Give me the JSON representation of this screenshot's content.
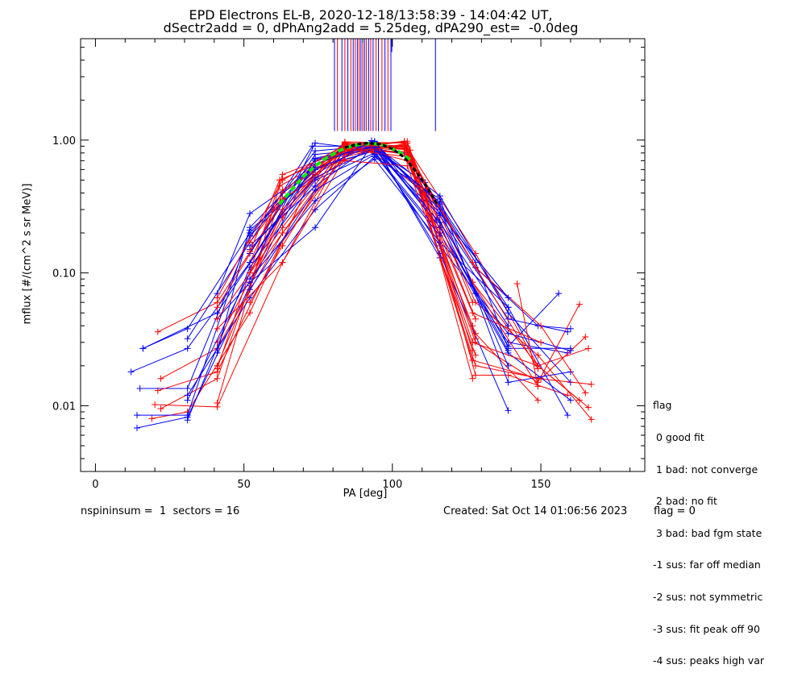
{
  "title": {
    "line1": "EPD Electrons EL-B, 2020-12-18/13:58:39 - 14:04:42 UT,",
    "line2": "dSectr2add = 0, dPhAng2add = 5.25deg, dPA290_est=  -0.0deg"
  },
  "footer": {
    "left": "nspininsum =  1  sectors = 16",
    "created": "Created: Sat Oct 14 01:06:56 2023",
    "flag": "flag = 0"
  },
  "legend": {
    "title": "flag",
    "items": [
      " 0 good fit",
      " 1 bad: not converge",
      " 2 bad: no fit",
      " 3 bad: bad fgm state",
      "-1 sus: far off median",
      "-2 sus: not symmetric",
      "-3 sus: fit peak off 90",
      "-4 sus: peaks high var"
    ]
  },
  "chart_data": {
    "type": "line",
    "xlabel": "PA [deg]",
    "ylabel": "mflux [#/(cm^2 s sr MeV)]",
    "xlim": [
      -5,
      185
    ],
    "ylim": [
      0.0032,
      5.8
    ],
    "yscale": "log",
    "xticks": [
      0,
      50,
      100,
      150
    ],
    "xtick_labels": [
      "0",
      "50",
      "100",
      "150"
    ],
    "yticks": [
      0.01,
      0.1,
      1.0
    ],
    "ytick_labels": [
      "0.01",
      "0.10",
      "1.00"
    ],
    "colors": {
      "red": "#ff0000",
      "blue": "#0000ff",
      "green": "#00ee00",
      "black": "#000000"
    },
    "series": [
      {
        "color": "blue",
        "x": [
          12,
          31,
          52,
          74,
          93,
          111,
          128,
          139,
          160
        ],
        "y": [
          0.018,
          0.027,
          0.12,
          0.72,
          0.88,
          0.48,
          0.12,
          0.027,
          0.027
        ]
      },
      {
        "color": "red",
        "x": [
          19,
          31,
          52,
          74,
          93,
          111,
          128,
          139,
          159
        ],
        "y": [
          0.008,
          0.009,
          0.05,
          0.6,
          0.82,
          0.4,
          0.017,
          0.017,
          0.012
        ]
      },
      {
        "color": "blue",
        "x": [
          14,
          31,
          52,
          74,
          93,
          111,
          128,
          139,
          159
        ],
        "y": [
          0.0068,
          0.0082,
          0.08,
          0.73,
          0.9,
          0.42,
          0.07,
          0.03,
          0.025
        ]
      },
      {
        "color": "red",
        "x": [
          21,
          41,
          63,
          84,
          104,
          128,
          149,
          166
        ],
        "y": [
          0.036,
          0.06,
          0.34,
          0.97,
          0.95,
          0.14,
          0.02,
          0.027
        ]
      },
      {
        "color": "blue",
        "x": [
          16,
          41,
          63,
          84,
          104,
          128,
          149,
          160
        ],
        "y": [
          0.027,
          0.05,
          0.28,
          0.9,
          0.8,
          0.11,
          0.04,
          0.038
        ]
      },
      {
        "color": "red",
        "x": [
          22,
          41,
          63,
          84,
          104,
          128,
          149,
          167
        ],
        "y": [
          0.016,
          0.027,
          0.2,
          0.85,
          0.9,
          0.06,
          0.024,
          0.0079
        ]
      },
      {
        "color": "blue",
        "x": [
          15,
          31,
          52,
          74,
          94,
          116,
          139,
          159
        ],
        "y": [
          0.0135,
          0.0135,
          0.19,
          0.83,
          0.91,
          0.33,
          0.055,
          0.0085
        ]
      },
      {
        "color": "red",
        "x": [
          20,
          41,
          63,
          84,
          104,
          127,
          149,
          163
        ],
        "y": [
          0.0102,
          0.0098,
          0.12,
          0.88,
          0.98,
          0.085,
          0.02,
          0.011
        ]
      },
      {
        "color": "blue",
        "x": [
          16,
          31,
          52,
          74,
          94,
          116,
          139,
          160
        ],
        "y": [
          0.027,
          0.038,
          0.2,
          0.66,
          0.92,
          0.38,
          0.05,
          0.015
        ]
      },
      {
        "color": "red",
        "x": [
          21,
          41,
          62,
          84,
          104,
          128,
          150,
          165
        ],
        "y": [
          0.013,
          0.018,
          0.16,
          0.78,
          0.92,
          0.02,
          0.016,
          0.033
        ]
      },
      {
        "color": "blue",
        "x": [
          14,
          31,
          52,
          74,
          93,
          116,
          139,
          156
        ],
        "y": [
          0.0085,
          0.0085,
          0.21,
          0.55,
          0.99,
          0.22,
          0.028,
          0.07
        ]
      },
      {
        "color": "red",
        "x": [
          22,
          41,
          63,
          84,
          104,
          128,
          149,
          163
        ],
        "y": [
          0.0095,
          0.016,
          0.4,
          0.84,
          0.88,
          0.03,
          0.015,
          0.058
        ]
      },
      {
        "color": "blue",
        "x": [
          31,
          52,
          73,
          94,
          116,
          139
        ],
        "y": [
          0.032,
          0.17,
          0.9,
          0.9,
          0.14,
          0.0092
        ]
      },
      {
        "color": "red",
        "x": [
          41,
          62,
          84,
          104,
          127,
          149,
          167
        ],
        "y": [
          0.0105,
          0.45,
          0.84,
          0.92,
          0.022,
          0.016,
          0.0145
        ]
      },
      {
        "color": "blue",
        "x": [
          31,
          52,
          74,
          94,
          116,
          139,
          160
        ],
        "y": [
          0.0078,
          0.11,
          0.5,
          0.8,
          0.2,
          0.025,
          0.011
        ]
      },
      {
        "color": "red",
        "x": [
          41,
          63,
          84,
          104,
          128,
          149
        ],
        "y": [
          0.019,
          0.55,
          0.84,
          0.82,
          0.035,
          0.011
        ]
      },
      {
        "color": "blue",
        "x": [
          31,
          52,
          74,
          94,
          116,
          139,
          160
        ],
        "y": [
          0.012,
          0.065,
          0.3,
          0.75,
          0.36,
          0.015,
          0.018
        ]
      },
      {
        "color": "red",
        "x": [
          41,
          63,
          84,
          104,
          128,
          150,
          165
        ],
        "y": [
          0.03,
          0.26,
          0.95,
          0.9,
          0.11,
          0.04,
          0.0125
        ]
      },
      {
        "color": "blue",
        "x": [
          31,
          52,
          74,
          94,
          116,
          139,
          159
        ],
        "y": [
          0.011,
          0.1,
          0.95,
          0.84,
          0.27,
          0.045,
          0.036
        ]
      },
      {
        "color": "red",
        "x": [
          41,
          63,
          84,
          104,
          127,
          149,
          166
        ],
        "y": [
          0.02,
          0.3,
          0.94,
          0.96,
          0.03,
          0.02,
          0.0097
        ]
      },
      {
        "color": "blue",
        "x": [
          41,
          52,
          74,
          94,
          116,
          139,
          160
        ],
        "y": [
          0.07,
          0.28,
          0.62,
          0.83,
          0.16,
          0.035,
          0.026
        ]
      },
      {
        "color": "red",
        "x": [
          41,
          63,
          85,
          105,
          127,
          149,
          142
        ],
        "y": [
          0.038,
          0.12,
          0.8,
          0.87,
          0.085,
          0.014,
          0.083
        ]
      },
      {
        "color": "blue",
        "x": [
          41,
          52,
          74,
          94,
          116,
          139
        ],
        "y": [
          0.045,
          0.085,
          0.22,
          0.98,
          0.28,
          0.065
        ]
      },
      {
        "color": "red",
        "x": [
          41,
          63,
          84,
          105,
          127,
          150
        ],
        "y": [
          0.055,
          0.35,
          0.85,
          0.75,
          0.05,
          0.03
        ]
      },
      {
        "color": "blue",
        "x": [
          41,
          52,
          74,
          94,
          116,
          139
        ],
        "y": [
          0.025,
          0.22,
          0.7,
          0.9,
          0.22,
          0.026
        ]
      },
      {
        "color": "red",
        "x": [
          41,
          63,
          84,
          105,
          127,
          149
        ],
        "y": [
          0.045,
          0.22,
          0.9,
          0.78,
          0.12,
          0.019
        ]
      },
      {
        "color": "blue",
        "x": [
          52,
          74,
          94,
          116,
          139
        ],
        "y": [
          0.16,
          0.45,
          0.95,
          0.3,
          0.02
        ]
      },
      {
        "color": "red",
        "x": [
          52,
          63,
          84,
          105,
          127
        ],
        "y": [
          0.09,
          0.2,
          0.75,
          0.95,
          0.06
        ]
      },
      {
        "color": "blue",
        "x": [
          52,
          74,
          94,
          116,
          139
        ],
        "y": [
          0.14,
          0.78,
          0.86,
          0.24,
          0.04
        ]
      },
      {
        "color": "red",
        "x": [
          41,
          63,
          84,
          105,
          127
        ],
        "y": [
          0.065,
          0.5,
          0.92,
          0.7,
          0.04
        ]
      },
      {
        "color": "blue",
        "x": [
          52,
          74,
          94,
          116,
          139
        ],
        "y": [
          0.09,
          0.35,
          0.72,
          0.17,
          0.055
        ]
      },
      {
        "color": "red",
        "x": [
          52,
          63,
          85,
          105,
          127
        ],
        "y": [
          0.12,
          0.42,
          0.86,
          0.98,
          0.026
        ]
      },
      {
        "color": "blue",
        "x": [
          52,
          74,
          94,
          116
        ],
        "y": [
          0.19,
          0.6,
          0.93,
          0.13
        ]
      },
      {
        "color": "red",
        "x": [
          52,
          63,
          84,
          106,
          127
        ],
        "y": [
          0.06,
          0.16,
          0.93,
          0.84,
          0.016
        ]
      },
      {
        "color": "blue",
        "x": [
          52,
          74,
          94,
          116
        ],
        "y": [
          0.075,
          0.42,
          0.78,
          0.19
        ]
      },
      {
        "color": "red",
        "x": [
          52,
          63,
          84,
          105,
          128
        ],
        "y": [
          0.17,
          0.36,
          0.7,
          0.64,
          0.024
        ]
      },
      {
        "color": "blue",
        "x": [
          52,
          74,
          94,
          116
        ],
        "y": [
          0.15,
          0.52,
          0.88,
          0.34
        ]
      },
      {
        "color": "red",
        "x": [
          52,
          63,
          84,
          105,
          128
        ],
        "y": [
          0.1,
          0.28,
          0.96,
          0.85,
          0.045
        ]
      },
      {
        "color": "blue",
        "x": [
          52,
          74,
          94,
          115
        ],
        "y": [
          0.12,
          0.66,
          0.97,
          0.25
        ]
      },
      {
        "color": "red",
        "x": [
          52,
          62,
          84,
          105,
          128
        ],
        "y": [
          0.145,
          0.5,
          0.82,
          0.9,
          0.032
        ]
      }
    ],
    "fit_green": {
      "x": [
        62,
        66,
        70,
        74,
        78,
        82,
        86,
        90,
        94,
        98,
        102,
        106
      ],
      "y": [
        0.33,
        0.42,
        0.53,
        0.64,
        0.74,
        0.83,
        0.9,
        0.94,
        0.94,
        0.9,
        0.82,
        0.71
      ]
    },
    "fit_black": {
      "x": [
        84,
        88,
        92,
        96,
        100,
        104,
        108,
        112,
        115
      ],
      "y": [
        0.88,
        0.93,
        0.95,
        0.93,
        0.86,
        0.74,
        0.58,
        0.43,
        0.33
      ]
    },
    "vlines": [
      {
        "x": 80.5,
        "color": "blue"
      },
      {
        "x": 81.5,
        "color": "red"
      },
      {
        "x": 83.0,
        "color": "blue"
      },
      {
        "x": 84.0,
        "color": "red"
      },
      {
        "x": 85.0,
        "color": "blue"
      },
      {
        "x": 86.0,
        "color": "red"
      },
      {
        "x": 86.8,
        "color": "blue"
      },
      {
        "x": 87.5,
        "color": "red"
      },
      {
        "x": 88.2,
        "color": "blue"
      },
      {
        "x": 88.8,
        "color": "red"
      },
      {
        "x": 89.4,
        "color": "blue"
      },
      {
        "x": 90.0,
        "color": "red"
      },
      {
        "x": 90.6,
        "color": "blue"
      },
      {
        "x": 91.2,
        "color": "red"
      },
      {
        "x": 92.0,
        "color": "blue"
      },
      {
        "x": 92.7,
        "color": "red"
      },
      {
        "x": 93.5,
        "color": "blue"
      },
      {
        "x": 94.5,
        "color": "red"
      },
      {
        "x": 95.3,
        "color": "blue"
      },
      {
        "x": 96.5,
        "color": "red"
      },
      {
        "x": 97.5,
        "color": "blue"
      },
      {
        "x": 98.5,
        "color": "red"
      },
      {
        "x": 99.5,
        "color": "blue"
      },
      {
        "x": 114.5,
        "color": "blue"
      }
    ],
    "vline_range": [
      1.17,
      5.8
    ],
    "vline_extra": {
      "x": 99.8,
      "ytop": 5.8,
      "ybottom": 4.6,
      "color": "blue"
    },
    "grid": false
  }
}
